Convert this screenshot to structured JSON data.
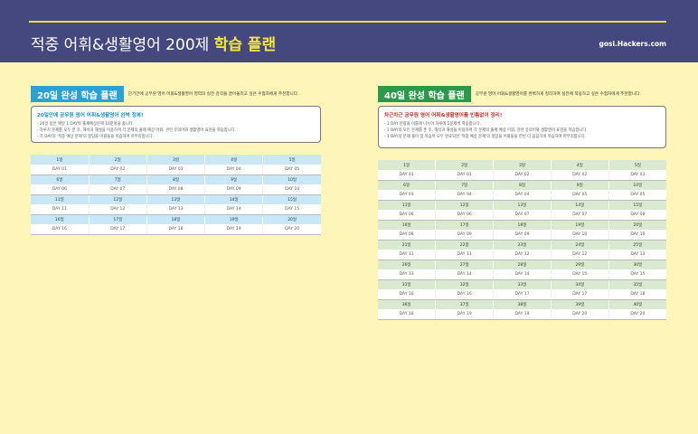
{
  "header": {
    "title_main": "적중 어휘&생활영어 200제 ",
    "title_highlight": "학습 플랜",
    "site": "gosi.Hackers.com"
  },
  "plan20": {
    "badge": "20일 완성 학습 플랜",
    "description": "단기간에 공무원 영어 어휘&생활영어 영역의 실전 감각을 끌어올리고 싶은 수험자에게 추천합니다.",
    "box_title": "20일안에 공무원 영어 어휘&생활영어 완벽 정복!",
    "lines": [
      "- 20일 동안 매일 1 DAY씩 출제예상문제 10문항을 풉니다.",
      "- 하루치 문제를 모두 푼 후, 해석과 해설을 이용하여 각 문제의 출제 예상 어휘, 관련 유의어와 생활영어 표현을 학습합니다.",
      "- 각 DAY의 '적중 예상 문제'의 정답을 어휘들을 복습하며 마무리합니다."
    ],
    "rows": [
      {
        "months": [
          "1일",
          "2일",
          "3일",
          "4일",
          "5일"
        ],
        "days": [
          "DAY 01",
          "DAY 02",
          "DAY 03",
          "DAY 04",
          "DAY 05"
        ]
      },
      {
        "months": [
          "6일",
          "7일",
          "8일",
          "9일",
          "10일"
        ],
        "days": [
          "DAY 06",
          "DAY 07",
          "DAY 08",
          "DAY 09",
          "DAY 10"
        ]
      },
      {
        "months": [
          "11일",
          "12일",
          "13일",
          "14일",
          "15일"
        ],
        "days": [
          "DAY 11",
          "DAY 12",
          "DAY 13",
          "DAY 14",
          "DAY 15"
        ]
      },
      {
        "months": [
          "16일",
          "17일",
          "18일",
          "19일",
          "20일"
        ],
        "days": [
          "DAY 16",
          "DAY 17",
          "DAY 18",
          "DAY 19",
          "DAY 20"
        ]
      }
    ]
  },
  "plan40": {
    "badge": "40일 완성 학습 플랜",
    "description": "공무원 영어 어휘&생활영어를 완벽하게 정리하여 실전에 적용하고 싶은 수험자에게 추천합니다.",
    "box_title": "차근차근 공무원 영어 어휘&생활영어를 빈틈없이 정리!",
    "lines": [
      "- 1 DAY 분량을 이틀에 나누어 하루에 5문제씩 학습합니다.",
      "- 1 DAY의 모든 문제를 푼 후, 해석과 해설을 이용하여 각 문제의 출제 예상 어휘, 관련 유의어와 생활영어 표현을 학습합니다.",
      "- 1 DAY의 문제 풀이 및 복습이 모두 완료되면 '적중 예상 문제'의 정답을 어휘들을 한번 더 꼼꼼하게 복습하며 마무리합니다."
    ],
    "rows": [
      {
        "months": [
          "1일",
          "2일",
          "3일",
          "4일",
          "5일"
        ],
        "days": [
          "DAY 01",
          "DAY 01",
          "DAY 02",
          "DAY 02",
          "DAY 03"
        ]
      },
      {
        "months": [
          "6일",
          "7일",
          "8일",
          "9일",
          "10일"
        ],
        "days": [
          "DAY 03",
          "DAY 04",
          "DAY 04",
          "DAY 05",
          "DAY 05"
        ]
      },
      {
        "months": [
          "11일",
          "12일",
          "13일",
          "14일",
          "15일"
        ],
        "days": [
          "DAY 06",
          "DAY 06",
          "DAY 07",
          "DAY 07",
          "DAY 08"
        ]
      },
      {
        "months": [
          "16일",
          "17일",
          "18일",
          "19일",
          "20일"
        ],
        "days": [
          "DAY 08",
          "DAY 09",
          "DAY 09",
          "DAY 10",
          "DAY 10"
        ]
      },
      {
        "months": [
          "21일",
          "22일",
          "23일",
          "24일",
          "25일"
        ],
        "days": [
          "DAY 11",
          "DAY 11",
          "DAY 12",
          "DAY 12",
          "DAY 13"
        ]
      },
      {
        "months": [
          "26일",
          "27일",
          "28일",
          "29일",
          "30일"
        ],
        "days": [
          "DAY 13",
          "DAY 14",
          "DAY 14",
          "DAY 15",
          "DAY 15"
        ]
      },
      {
        "months": [
          "31일",
          "32일",
          "33일",
          "34일",
          "35일"
        ],
        "days": [
          "DAY 16",
          "DAY 16",
          "DAY 17",
          "DAY 17",
          "DAY 18"
        ]
      },
      {
        "months": [
          "36일",
          "37일",
          "38일",
          "39일",
          "40일"
        ],
        "days": [
          "DAY 18",
          "DAY 19",
          "DAY 19",
          "DAY 20",
          "DAY 20"
        ]
      }
    ]
  }
}
